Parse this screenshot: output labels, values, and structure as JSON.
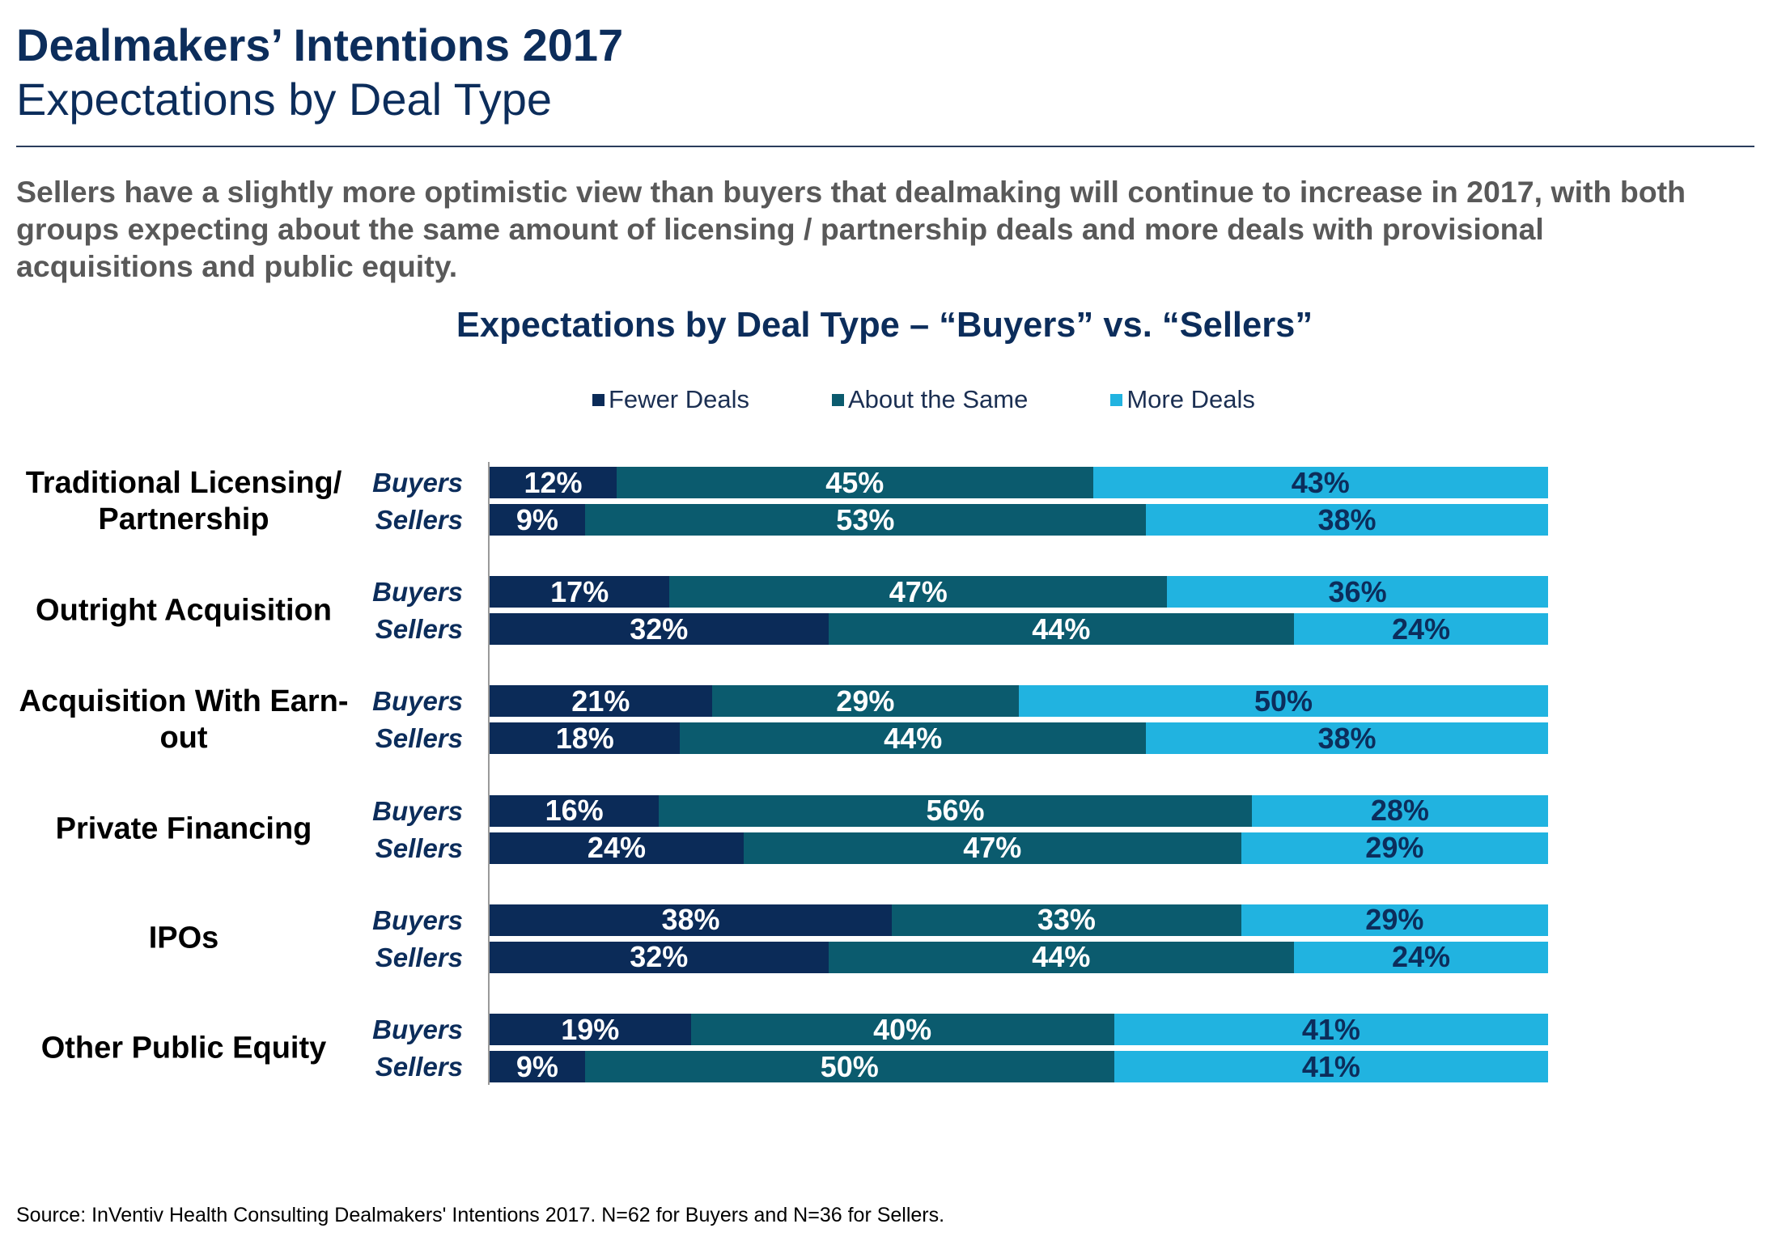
{
  "header": {
    "title": "Dealmakers’ Intentions 2017",
    "subtitle": "Expectations by Deal Type"
  },
  "summary": "Sellers have a slightly more optimistic view than buyers that dealmaking will continue to increase in 2017, with both groups expecting about the same amount of licensing / partnership deals and more deals with provisional acquisitions and public equity.",
  "colors": {
    "title": "#0c2d5b",
    "summary_text": "#595959",
    "divider": "#2a3d5c",
    "axis": "#9a9a9a"
  },
  "chart_data": {
    "type": "bar",
    "orientation": "horizontal",
    "stacked": true,
    "title": "Expectations by Deal Type – “Buyers” vs. “Sellers”",
    "legend_position": "top",
    "grid": false,
    "xlim": [
      0,
      100
    ],
    "value_suffix": "%",
    "series": [
      {
        "name": "Fewer Deals",
        "color": "#0b2b58",
        "label_color": "#ffffff"
      },
      {
        "name": "About the Same",
        "color": "#0b5b6e",
        "label_color": "#ffffff"
      },
      {
        "name": "More Deals",
        "color": "#21b3e0",
        "label_color": "#0c2d5b"
      }
    ],
    "groups": [
      {
        "category": "Traditional Licensing/ Partnership",
        "rows": [
          {
            "label": "Buyers",
            "values": [
              12,
              45,
              43
            ]
          },
          {
            "label": "Sellers",
            "values": [
              9,
              53,
              38
            ]
          }
        ]
      },
      {
        "category": "Outright Acquisition",
        "rows": [
          {
            "label": "Buyers",
            "values": [
              17,
              47,
              36
            ]
          },
          {
            "label": "Sellers",
            "values": [
              32,
              44,
              24
            ]
          }
        ]
      },
      {
        "category": "Acquisition With Earn-out",
        "rows": [
          {
            "label": "Buyers",
            "values": [
              21,
              29,
              50
            ]
          },
          {
            "label": "Sellers",
            "values": [
              18,
              44,
              38
            ]
          }
        ]
      },
      {
        "category": "Private Financing",
        "rows": [
          {
            "label": "Buyers",
            "values": [
              16,
              56,
              28
            ]
          },
          {
            "label": "Sellers",
            "values": [
              24,
              47,
              29
            ]
          }
        ]
      },
      {
        "category": "IPOs",
        "rows": [
          {
            "label": "Buyers",
            "values": [
              38,
              33,
              29
            ]
          },
          {
            "label": "Sellers",
            "values": [
              32,
              44,
              24
            ]
          }
        ]
      },
      {
        "category": "Other Public Equity",
        "rows": [
          {
            "label": "Buyers",
            "values": [
              19,
              40,
              41
            ]
          },
          {
            "label": "Sellers",
            "values": [
              9,
              50,
              41
            ]
          }
        ]
      }
    ]
  },
  "source": "Source: InVentiv Health Consulting Dealmakers' Intentions 2017. N=62 for Buyers and N=36 for Sellers."
}
